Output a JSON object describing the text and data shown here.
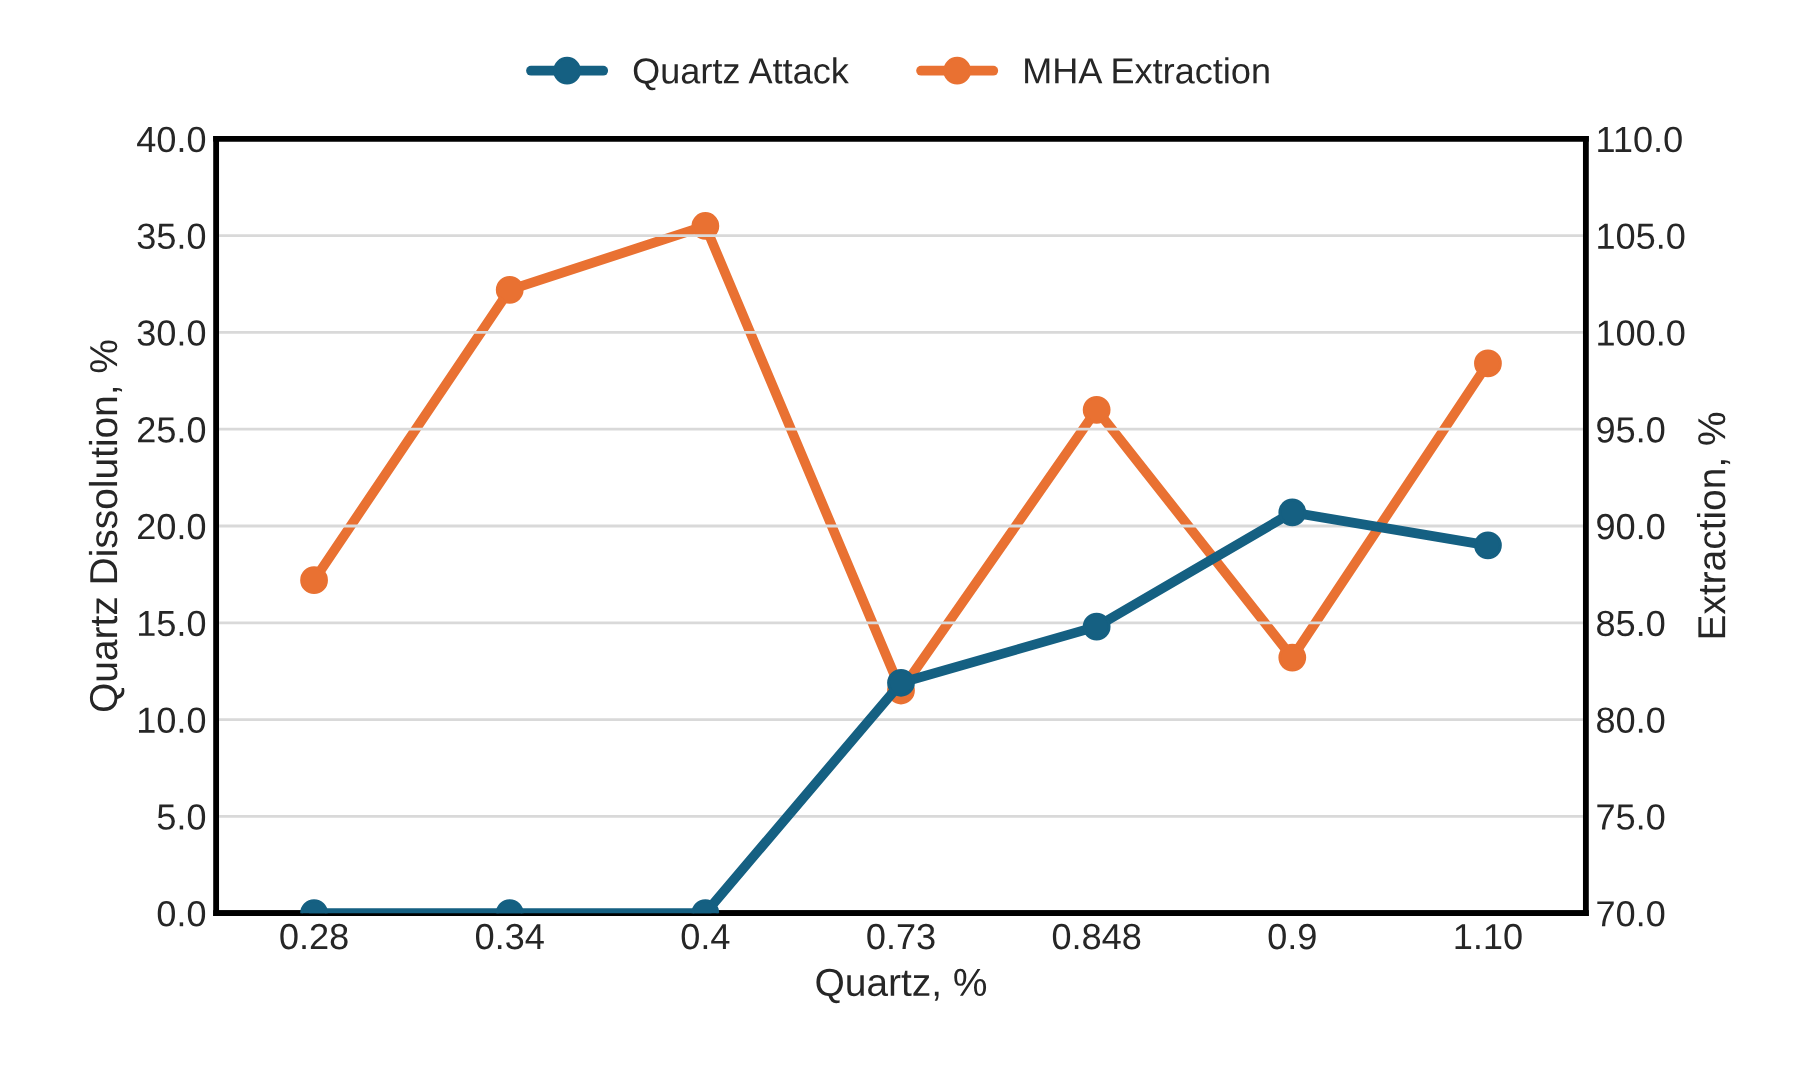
{
  "chart_data": {
    "type": "line",
    "xlabel": "Quartz, %",
    "ylabel": "Quartz Dissolution, %",
    "y2label": "Extraction, %",
    "categories": [
      "0.28",
      "0.34",
      "0.4",
      "0.73",
      "0.848",
      "0.9",
      "1.10"
    ],
    "series": [
      {
        "name": "Quartz Attack",
        "color": "#156082",
        "values": [
          0,
          0,
          0,
          11.9,
          14.8,
          20.7,
          19.0
        ]
      },
      {
        "name": "MHA Extraction",
        "color": "#e97132",
        "axis": "y2",
        "values": [
          87.2,
          102.2,
          105.5,
          81.5,
          96.0,
          83.2,
          98.4
        ]
      }
    ],
    "ylim": [
      0,
      40
    ],
    "yticks": [
      {
        "value": 0,
        "label": "0.0"
      },
      {
        "value": 5,
        "label": "5.0"
      },
      {
        "value": 10,
        "label": "10.0"
      },
      {
        "value": 15,
        "label": "15.0"
      },
      {
        "value": 20,
        "label": "20.0"
      },
      {
        "value": 25,
        "label": "25.0"
      },
      {
        "value": 30,
        "label": "30.0"
      },
      {
        "value": 35,
        "label": "35.0"
      },
      {
        "value": 40,
        "label": "40.0"
      }
    ],
    "y2lim": [
      70,
      110
    ],
    "y2ticks": [
      {
        "value": 70,
        "label": "70.0"
      },
      {
        "value": 75,
        "label": "75.0"
      },
      {
        "value": 80,
        "label": "80.0"
      },
      {
        "value": 85,
        "label": "85.0"
      },
      {
        "value": 90,
        "label": "90.0"
      },
      {
        "value": 95,
        "label": "95.0"
      },
      {
        "value": 100,
        "label": "100.0"
      },
      {
        "value": 105,
        "label": "105.0"
      },
      {
        "value": 110,
        "label": "110.0"
      }
    ],
    "grid": "y",
    "legend": "top",
    "marker": "circle",
    "line_style": "solid"
  }
}
